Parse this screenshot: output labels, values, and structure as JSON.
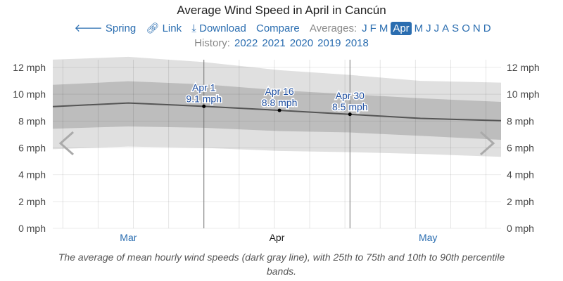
{
  "title": "Average Wind Speed in April in Cancún",
  "nav": {
    "back": "Spring",
    "link": "Link",
    "download": "Download",
    "compare": "Compare",
    "averages_label": "Averages:",
    "months": [
      "J",
      "F",
      "M",
      "Apr",
      "M",
      "J",
      "J",
      "A",
      "S",
      "O",
      "N",
      "D"
    ],
    "selected_month_index": 3
  },
  "history": {
    "label": "History:",
    "years": [
      "2022",
      "2021",
      "2020",
      "2019",
      "2018"
    ]
  },
  "caption": "The average of mean hourly wind speeds (dark gray line), with 25th to 75th and 10th to 90th percentile bands.",
  "colors": {
    "link": "#2a6db0",
    "mean": "#555555",
    "band_inner": "#bdbdbd",
    "band_outer": "#e0e0e0"
  },
  "chart_data": {
    "type": "area",
    "title": "Average Wind Speed in April in Cancún",
    "x_unit": "days relative to Apr 1",
    "xlim": [
      -30,
      59
    ],
    "ylim": [
      0,
      12
    ],
    "yticks": [
      0,
      2,
      4,
      6,
      8,
      10,
      12
    ],
    "ytick_labels": [
      "0 mph",
      "2 mph",
      "4 mph",
      "6 mph",
      "8 mph",
      "10 mph",
      "12 mph"
    ],
    "month_labels": [
      {
        "label": "Mar",
        "day": -15,
        "color": "#2a6db0"
      },
      {
        "label": "Apr",
        "day": 14.5,
        "color": "#222222"
      },
      {
        "label": "May",
        "day": 44.5,
        "color": "#2a6db0"
      }
    ],
    "x": [
      -30,
      -15,
      0,
      15,
      29,
      43,
      59
    ],
    "series": [
      {
        "name": "mean",
        "values": [
          9.08,
          9.35,
          9.1,
          8.8,
          8.5,
          8.2,
          8.03
        ]
      },
      {
        "name": "p25",
        "values": [
          7.43,
          7.6,
          7.5,
          7.25,
          7.15,
          6.9,
          6.6
        ]
      },
      {
        "name": "p75",
        "values": [
          10.7,
          10.97,
          10.74,
          10.3,
          10.0,
          9.7,
          9.43
        ]
      },
      {
        "name": "p10",
        "values": [
          5.9,
          6.1,
          6.0,
          5.77,
          5.68,
          5.55,
          5.33
        ]
      },
      {
        "name": "p90",
        "values": [
          12.58,
          12.79,
          12.4,
          11.8,
          11.44,
          11.0,
          10.87
        ]
      }
    ],
    "annotations": [
      {
        "day": 0,
        "label": "Apr 1",
        "value_label": "9.1 mph",
        "value": 9.1,
        "line": true
      },
      {
        "day": 15,
        "label": "Apr 16",
        "value_label": "8.8 mph",
        "value": 8.8,
        "line": false
      },
      {
        "day": 29,
        "label": "Apr 30",
        "value_label": "8.5 mph",
        "value": 8.5,
        "line": true
      }
    ]
  }
}
